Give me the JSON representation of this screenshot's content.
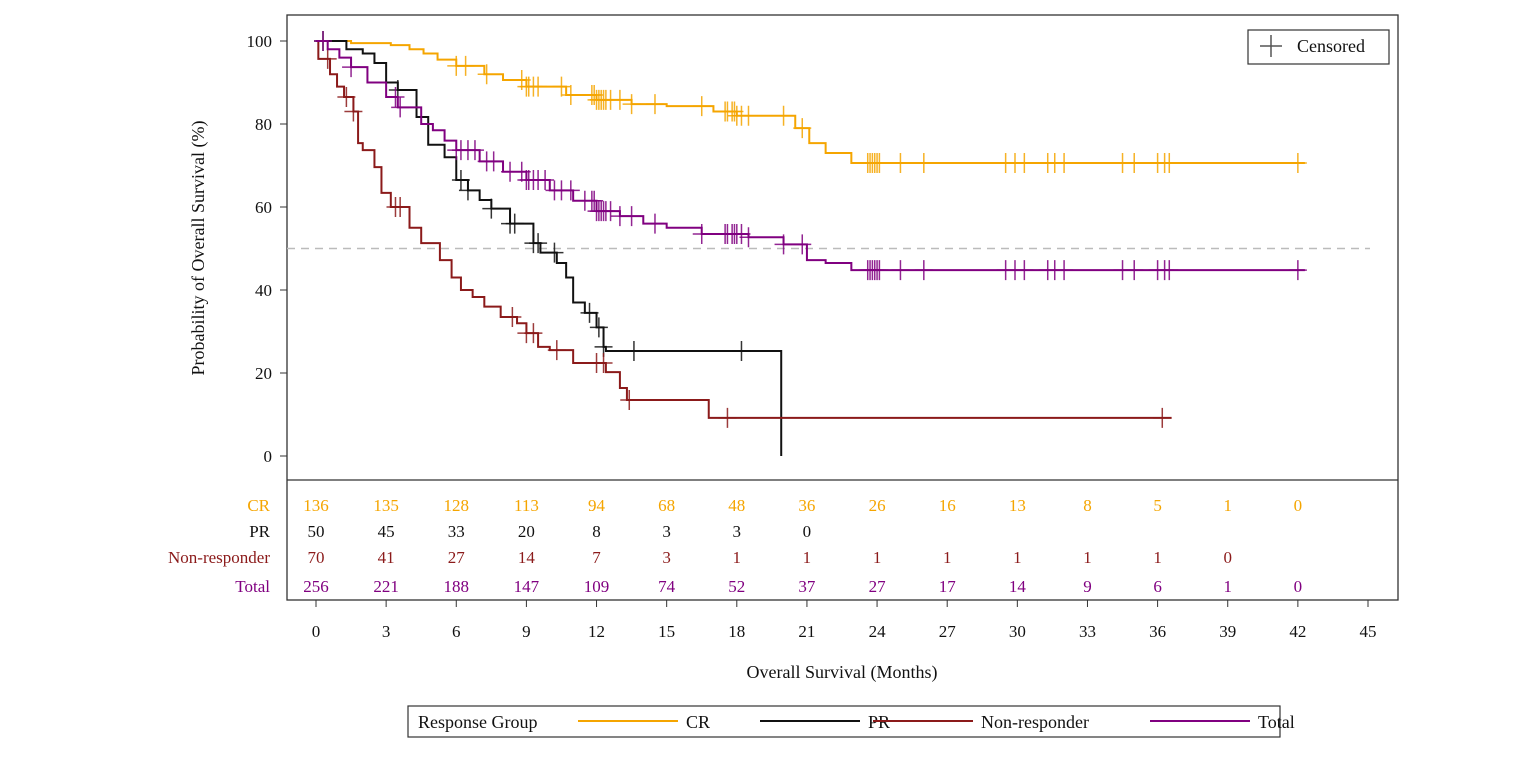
{
  "chart_data": {
    "type": "line",
    "subtype": "kaplan-meier-step",
    "xlabel": "Overall Survival (Months)",
    "ylabel": "Probability of Overall Survival (%)",
    "xlim": [
      0,
      45
    ],
    "ylim": [
      0,
      100
    ],
    "xticks": [
      0,
      3,
      6,
      9,
      12,
      15,
      18,
      21,
      24,
      27,
      30,
      33,
      36,
      39,
      42,
      45
    ],
    "yticks": [
      0,
      20,
      40,
      60,
      80,
      100
    ],
    "reference_line": {
      "y": 50,
      "style": "dashed",
      "color": "#bbbbbb"
    },
    "grid": false,
    "censor_legend": {
      "label": "Censored",
      "position": "top-right"
    },
    "legend": {
      "title": "Response Group",
      "position": "bottom"
    },
    "series": [
      {
        "name": "CR",
        "color": "#F5A500",
        "steps": [
          [
            0,
            100
          ],
          [
            1.5,
            99.5
          ],
          [
            3.2,
            99
          ],
          [
            4,
            98
          ],
          [
            4.6,
            97
          ],
          [
            5.2,
            95.5
          ],
          [
            6,
            94
          ],
          [
            7.2,
            92
          ],
          [
            8,
            90.6
          ],
          [
            9,
            89
          ],
          [
            10.7,
            87
          ],
          [
            12,
            85.8
          ],
          [
            13.5,
            84.8
          ],
          [
            15,
            84.3
          ],
          [
            17,
            83
          ],
          [
            18,
            82
          ],
          [
            20.5,
            79
          ],
          [
            21.1,
            75.4
          ],
          [
            21.8,
            73
          ],
          [
            22.9,
            70.6
          ],
          [
            42.3,
            70.6
          ]
        ],
        "censored": [
          6,
          6.4,
          7.3,
          8.8,
          9,
          9.1,
          9.3,
          9.5,
          10.5,
          10.9,
          11.8,
          11.9,
          12,
          12.1,
          12.2,
          12.3,
          12.4,
          12.6,
          13,
          13.5,
          14.5,
          16.5,
          17.5,
          17.6,
          17.8,
          17.9,
          18,
          18.2,
          18.5,
          20,
          20.8,
          23.6,
          23.7,
          23.8,
          23.9,
          24,
          24.1,
          25,
          26,
          29.5,
          29.9,
          30.3,
          31.3,
          31.6,
          32,
          34.5,
          35,
          36,
          36.3,
          36.5,
          42
        ]
      },
      {
        "name": "PR",
        "color": "#111111",
        "steps": [
          [
            0,
            100
          ],
          [
            1.3,
            98
          ],
          [
            2,
            97
          ],
          [
            2.5,
            94.7
          ],
          [
            3,
            90
          ],
          [
            3.5,
            88.2
          ],
          [
            4.3,
            81.7
          ],
          [
            4.8,
            75
          ],
          [
            5.5,
            72
          ],
          [
            6,
            66.5
          ],
          [
            6.5,
            64
          ],
          [
            7,
            61.7
          ],
          [
            7.5,
            59.6
          ],
          [
            8.3,
            56
          ],
          [
            9.3,
            51.3
          ],
          [
            9.6,
            49
          ],
          [
            10.3,
            46.5
          ],
          [
            10.7,
            43
          ],
          [
            11,
            37
          ],
          [
            11.5,
            34.5
          ],
          [
            12,
            31
          ],
          [
            12.3,
            26.3
          ],
          [
            12.4,
            25.3
          ],
          [
            19.9,
            25.3
          ],
          [
            19.9,
            0
          ]
        ],
        "censored": [
          0.3,
          3.5,
          6.2,
          6.5,
          7.5,
          8.3,
          8.5,
          9.3,
          9.5,
          10.2,
          11.7,
          12.1,
          12.3,
          13.6,
          18.2
        ]
      },
      {
        "name": "Non-responder",
        "color": "#8B1A1A",
        "steps": [
          [
            0,
            100
          ],
          [
            0.1,
            95.7
          ],
          [
            0.6,
            92
          ],
          [
            0.9,
            89
          ],
          [
            1.2,
            86.5
          ],
          [
            1.6,
            83
          ],
          [
            1.8,
            75.4
          ],
          [
            2,
            73.7
          ],
          [
            2.5,
            69.6
          ],
          [
            2.8,
            63.4
          ],
          [
            3.2,
            60
          ],
          [
            4,
            55
          ],
          [
            4.5,
            51.3
          ],
          [
            5.3,
            47.2
          ],
          [
            5.8,
            43
          ],
          [
            6.2,
            40
          ],
          [
            6.7,
            38.3
          ],
          [
            7.2,
            36
          ],
          [
            7.9,
            33.5
          ],
          [
            8.6,
            32
          ],
          [
            9,
            29.6
          ],
          [
            9.5,
            26.3
          ],
          [
            10,
            25.5
          ],
          [
            11,
            22.4
          ],
          [
            12.4,
            20.2
          ],
          [
            13,
            16.4
          ],
          [
            13.3,
            13.5
          ],
          [
            16.8,
            9.2
          ],
          [
            36.6,
            9.2
          ]
        ],
        "censored": [
          0.5,
          1.3,
          1.6,
          3.4,
          3.6,
          8.4,
          9,
          9.3,
          10.3,
          12,
          12.3,
          13.4,
          17.6,
          36.2
        ]
      },
      {
        "name": "Total",
        "color": "#800080",
        "steps": [
          [
            0,
            100
          ],
          [
            0.5,
            98
          ],
          [
            1,
            96
          ],
          [
            1.5,
            93.7
          ],
          [
            2.2,
            90
          ],
          [
            3,
            86.5
          ],
          [
            3.5,
            84
          ],
          [
            4.5,
            80
          ],
          [
            5,
            78.5
          ],
          [
            5.5,
            76
          ],
          [
            6,
            73.7
          ],
          [
            7,
            71
          ],
          [
            8,
            68.5
          ],
          [
            9,
            66.5
          ],
          [
            10,
            64
          ],
          [
            11,
            61.5
          ],
          [
            12,
            59
          ],
          [
            13,
            57.8
          ],
          [
            14,
            56
          ],
          [
            15,
            55
          ],
          [
            16.5,
            53.5
          ],
          [
            18.5,
            52.7
          ],
          [
            20,
            51
          ],
          [
            21,
            47.2
          ],
          [
            21.8,
            46.5
          ],
          [
            22.9,
            44.8
          ],
          [
            42.3,
            44.8
          ]
        ],
        "censored": [
          0.3,
          1.5,
          3.4,
          3.6,
          6,
          6.2,
          6.5,
          6.8,
          7.3,
          7.6,
          8.3,
          8.8,
          9,
          9.1,
          9.3,
          9.5,
          9.8,
          10.2,
          10.5,
          10.9,
          11.5,
          11.8,
          11.9,
          12,
          12.1,
          12.2,
          12.3,
          12.4,
          12.6,
          13,
          13.5,
          14.5,
          16.5,
          17.5,
          17.6,
          17.8,
          17.9,
          18,
          18.2,
          18.5,
          20,
          20.8,
          23.6,
          23.7,
          23.8,
          23.9,
          24,
          24.1,
          25,
          26,
          29.5,
          29.9,
          30.3,
          31.3,
          31.6,
          32,
          34.5,
          35,
          36,
          36.3,
          36.5,
          42
        ]
      }
    ],
    "at_risk": {
      "times": [
        0,
        3,
        6,
        9,
        12,
        15,
        18,
        21,
        24,
        27,
        30,
        33,
        36,
        39,
        42
      ],
      "rows": [
        {
          "label": "CR",
          "color": "#F5A500",
          "values": [
            "136",
            "135",
            "128",
            "113",
            "94",
            "68",
            "48",
            "36",
            "26",
            "16",
            "13",
            "8",
            "5",
            "1",
            "0"
          ]
        },
        {
          "label": "PR",
          "color": "#111111",
          "values": [
            "50",
            "45",
            "33",
            "20",
            "8",
            "3",
            "3",
            "0"
          ]
        },
        {
          "label": "Non-responder",
          "color": "#8B1A1A",
          "values": [
            "70",
            "41",
            "27",
            "14",
            "7",
            "3",
            "1",
            "1",
            "1",
            "1",
            "1",
            "1",
            "1",
            "0"
          ]
        },
        {
          "label": "Total",
          "color": "#800080",
          "values": [
            "256",
            "221",
            "188",
            "147",
            "109",
            "74",
            "52",
            "37",
            "27",
            "17",
            "14",
            "9",
            "6",
            "1",
            "0"
          ]
        }
      ]
    }
  }
}
